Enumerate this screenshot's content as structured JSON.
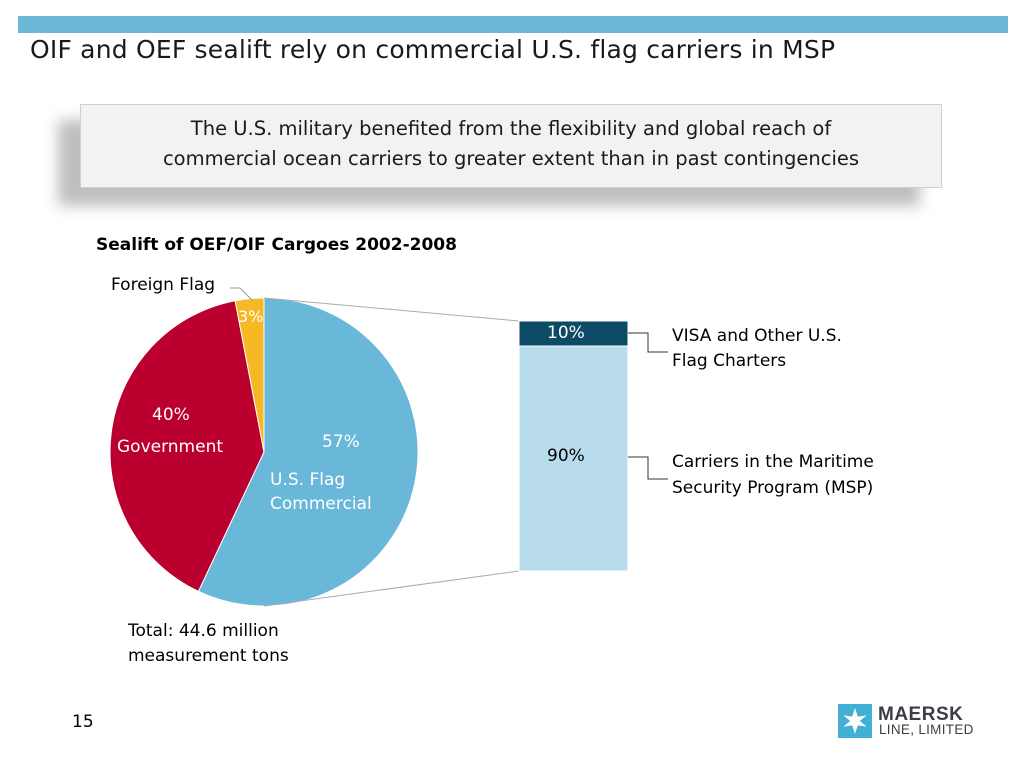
{
  "slide": {
    "title": "OIF and OEF sealift rely on commercial U.S. flag carriers in MSP",
    "callout_line1": "The U.S. military benefited from the flexibility and global reach of",
    "callout_line2": "commercial ocean carriers to greater extent than in past contingencies",
    "page_number": "15",
    "total_line1": "Total: 44.6 million",
    "total_line2": "measurement tons"
  },
  "logo": {
    "brand": "MAERSK",
    "sub": "LINE, LIMITED",
    "star_color": "#42b0d5"
  },
  "colors": {
    "top_bar": "#6db8d8",
    "us_flag": "#6ab8d9",
    "government": "#bb0030",
    "foreign": "#f6b825",
    "bar_visa": "#0d4a66",
    "bar_msp": "#b8dcec"
  },
  "chart_data": [
    {
      "type": "pie",
      "title": "Sealift of OEF/OIF Cargoes 2002-2008",
      "slices": [
        {
          "name_line1": "U.S. Flag",
          "name_line2": "Commercial",
          "value": 57,
          "label": "57%"
        },
        {
          "name_line1": "Government",
          "value": 40,
          "label": "40%"
        },
        {
          "name_line1": "Foreign Flag",
          "value": 3,
          "label": "3%"
        }
      ]
    },
    {
      "type": "bar",
      "stacked": true,
      "segments": [
        {
          "name_line1": "VISA and Other U.S.",
          "name_line2": "Flag Charters",
          "value": 10,
          "label": "10%"
        },
        {
          "name_line1": "Carriers in the Maritime",
          "name_line2": "Security Program (MSP)",
          "value": 90,
          "label": "90%"
        }
      ]
    }
  ]
}
